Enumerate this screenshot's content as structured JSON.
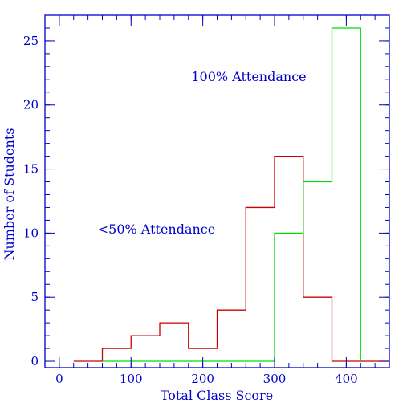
{
  "chart_data": {
    "type": "histogram",
    "xlabel": "Total Class Score",
    "ylabel": "Number of Students",
    "xlim": [
      -20,
      460
    ],
    "ylim": [
      -0.5,
      27
    ],
    "xticks": [
      0,
      100,
      200,
      300,
      400
    ],
    "yticks": [
      0,
      5,
      10,
      15,
      20,
      25
    ],
    "x_minor_step": 20,
    "y_minor_step": 1,
    "axis_color": "#0000cc",
    "series": [
      {
        "name": "<50% Attendance",
        "color": "#cc0000",
        "bin_edges": [
          20,
          60,
          100,
          140,
          180,
          220,
          260,
          300,
          340,
          380,
          420,
          460
        ],
        "counts": [
          0,
          1,
          2,
          3,
          1,
          4,
          12,
          16,
          5,
          0,
          0
        ]
      },
      {
        "name": "100% Attendance",
        "color": "#00dd00",
        "bin_edges": [
          60,
          100,
          140,
          180,
          220,
          260,
          300,
          340,
          380,
          420
        ],
        "counts": [
          0,
          0,
          0,
          0,
          0,
          0,
          10,
          14,
          26
        ]
      }
    ],
    "annotations": [
      {
        "text": "100% Attendance",
        "series": 1
      },
      {
        "text": "<50% Attendance",
        "series": 0
      }
    ]
  }
}
